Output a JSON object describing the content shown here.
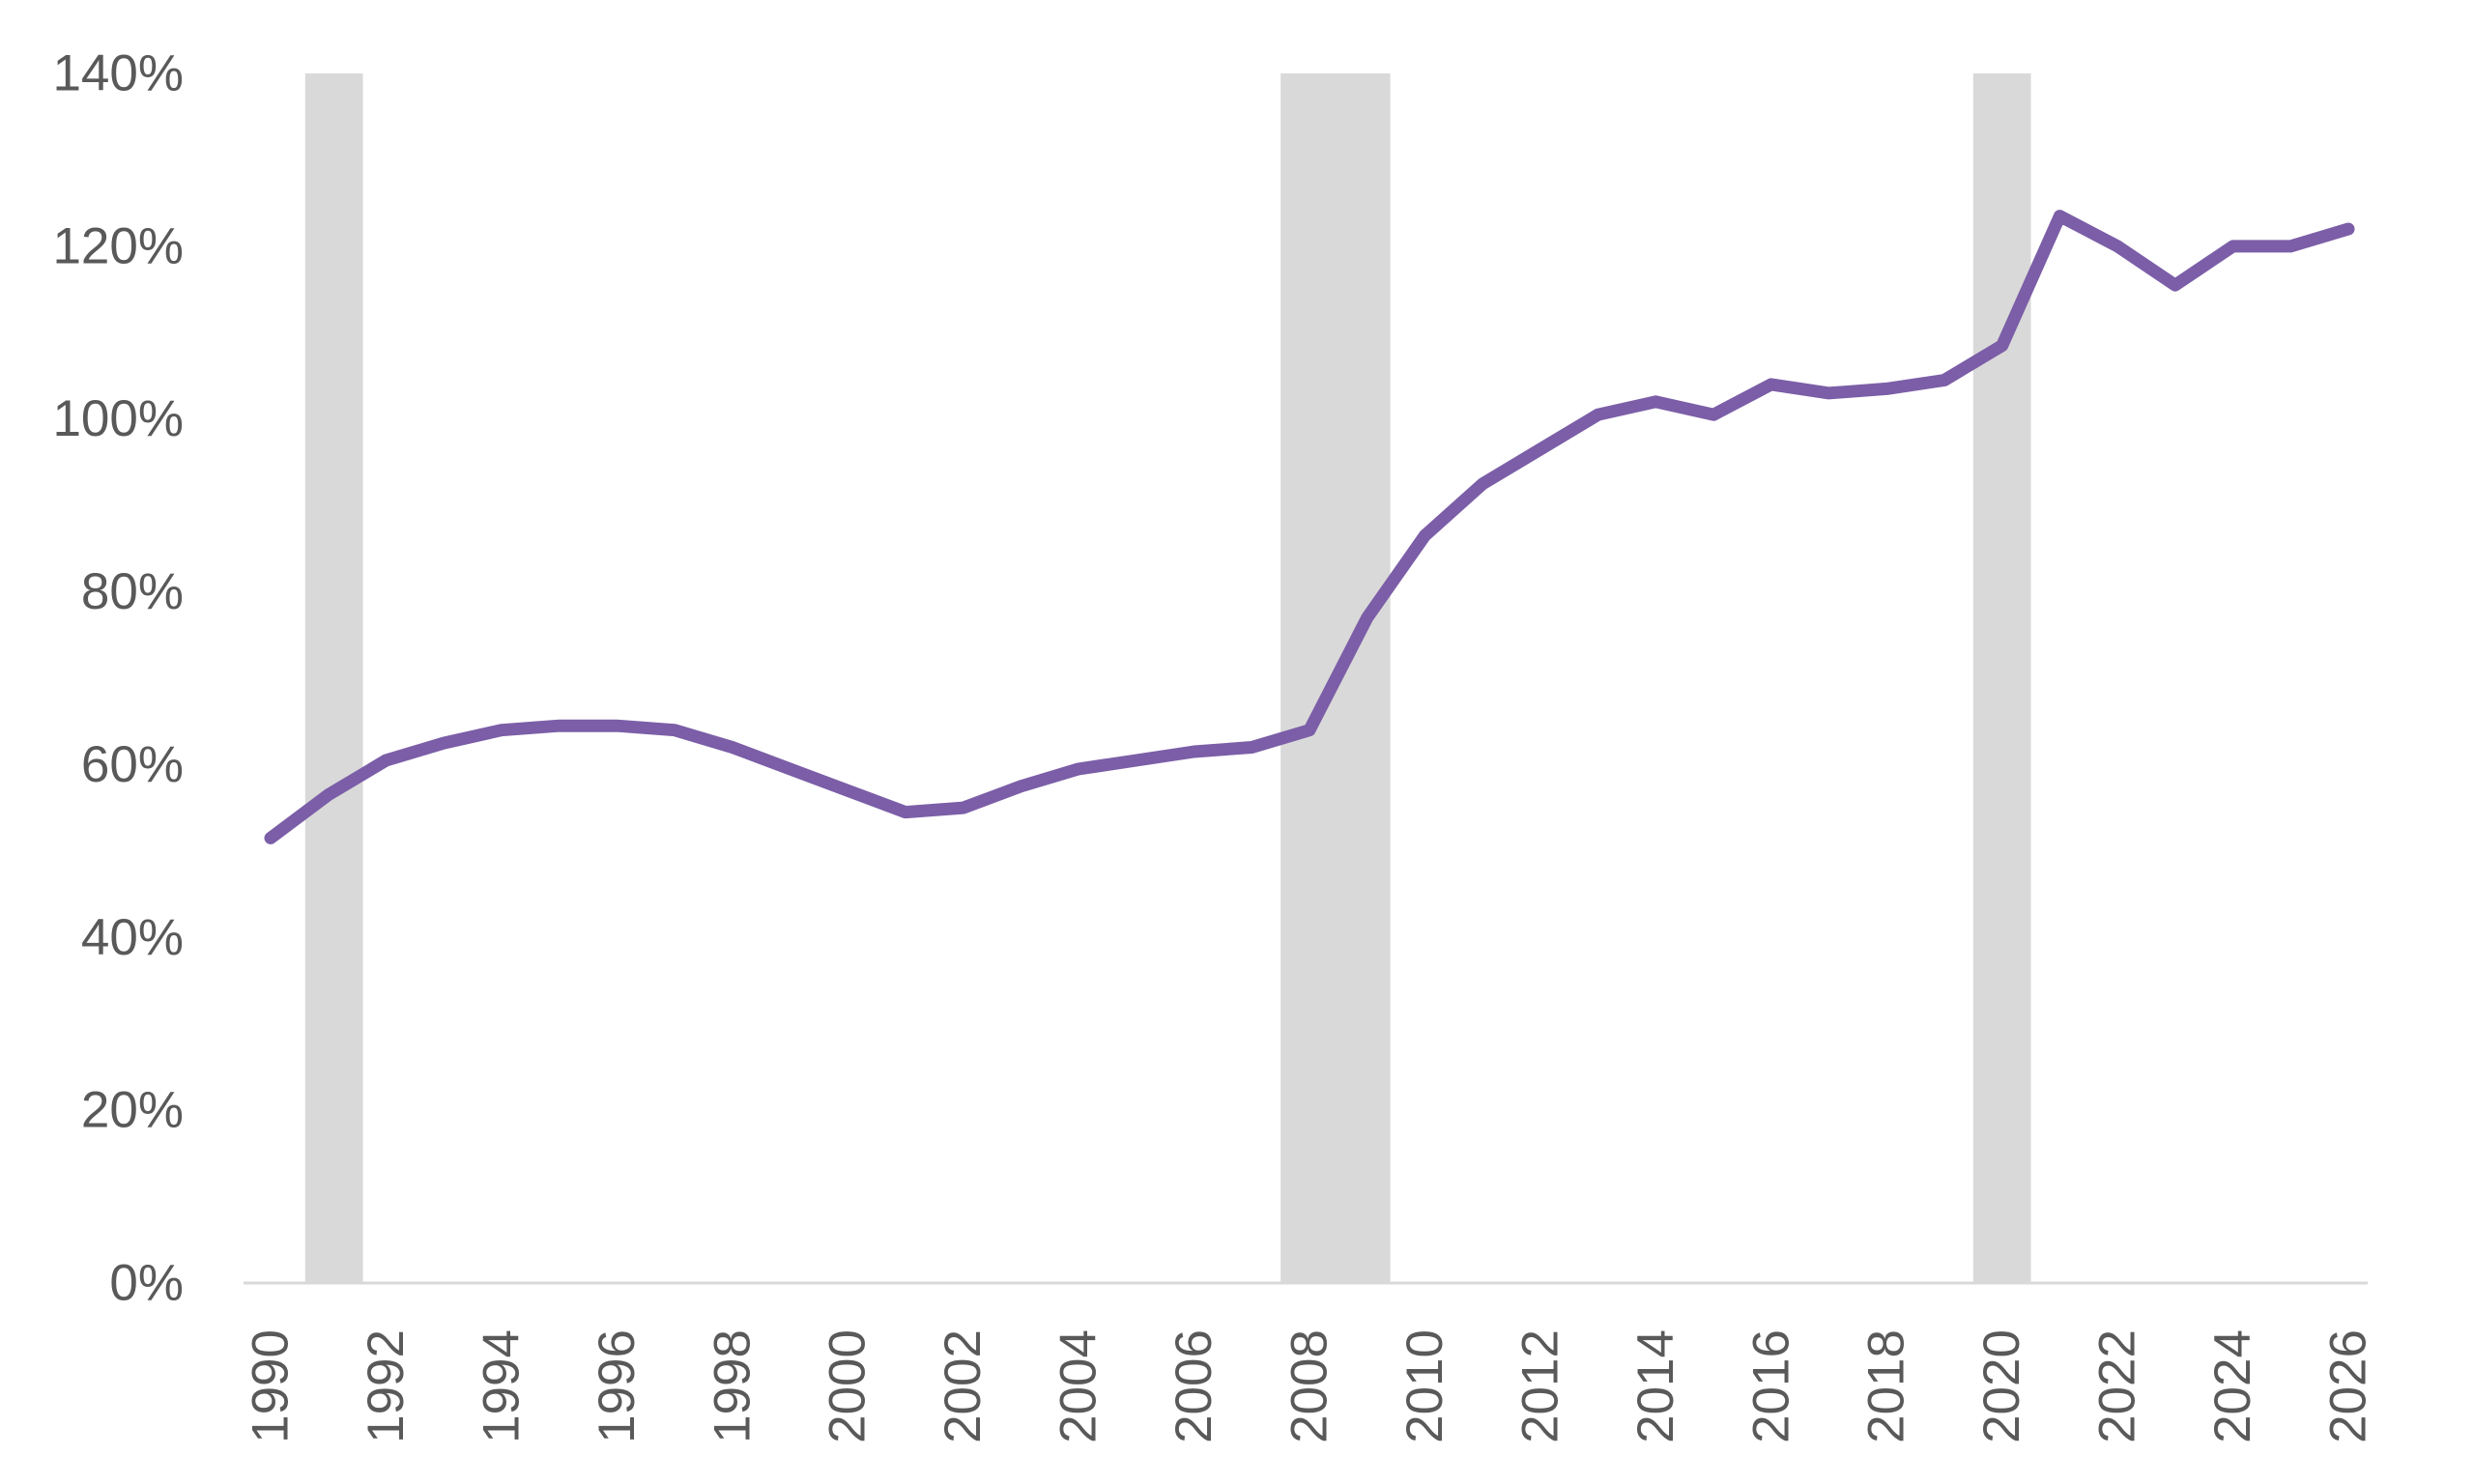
{
  "chart_data": {
    "type": "line",
    "title": "",
    "xlabel": "",
    "ylabel": "",
    "xlim": [
      1990,
      2026
    ],
    "ylim": [
      0,
      140
    ],
    "y_tick_values": [
      0,
      20,
      40,
      60,
      80,
      100,
      120,
      140
    ],
    "y_tick_labels": [
      "0%",
      "20%",
      "40%",
      "60%",
      "80%",
      "100%",
      "120%",
      "140%"
    ],
    "x_tick_values": [
      1990,
      1992,
      1994,
      1996,
      1998,
      2000,
      2002,
      2004,
      2006,
      2008,
      2010,
      2012,
      2014,
      2016,
      2018,
      2020,
      2022,
      2024,
      2026
    ],
    "x_tick_labels": [
      "1990",
      "1992",
      "1994",
      "1996",
      "1998",
      "2000",
      "2002",
      "2004",
      "2006",
      "2008",
      "2010",
      "2012",
      "2014",
      "2016",
      "2018",
      "2020",
      "2022",
      "2024",
      "2026"
    ],
    "grid": false,
    "legend": "none",
    "recession_bands": [
      {
        "start": 1990.6,
        "end": 1991.6
      },
      {
        "start": 2007.5,
        "end": 2009.4
      },
      {
        "start": 2019.5,
        "end": 2020.5
      }
    ],
    "series": [
      {
        "x": [
          1990,
          1991,
          1992,
          1993,
          1994,
          1995,
          1996,
          1997,
          1998,
          1999,
          2000,
          2001,
          2002,
          2003,
          2004,
          2005,
          2006,
          2007,
          2008,
          2009,
          2010,
          2011,
          2012,
          2013,
          2014,
          2015,
          2016,
          2017,
          2018,
          2019,
          2020,
          2021,
          2022,
          2023,
          2024,
          2025,
          2026
        ],
        "values": [
          51.5,
          56.5,
          60.5,
          62.5,
          64,
          64.5,
          64.5,
          64,
          62,
          59.5,
          57,
          54.5,
          55,
          57.5,
          59.5,
          60.5,
          61.5,
          62,
          64,
          77,
          86.5,
          92.5,
          96.5,
          100.5,
          102,
          100.5,
          104,
          103,
          103.5,
          104.5,
          108.5,
          123.5,
          120,
          115.5,
          120,
          120,
          122
        ]
      }
    ]
  },
  "style": {
    "line_color": "#7b5ea7",
    "band_color": "#d9d9d9",
    "axis_color": "#d9d9d9",
    "label_color": "#595959"
  }
}
